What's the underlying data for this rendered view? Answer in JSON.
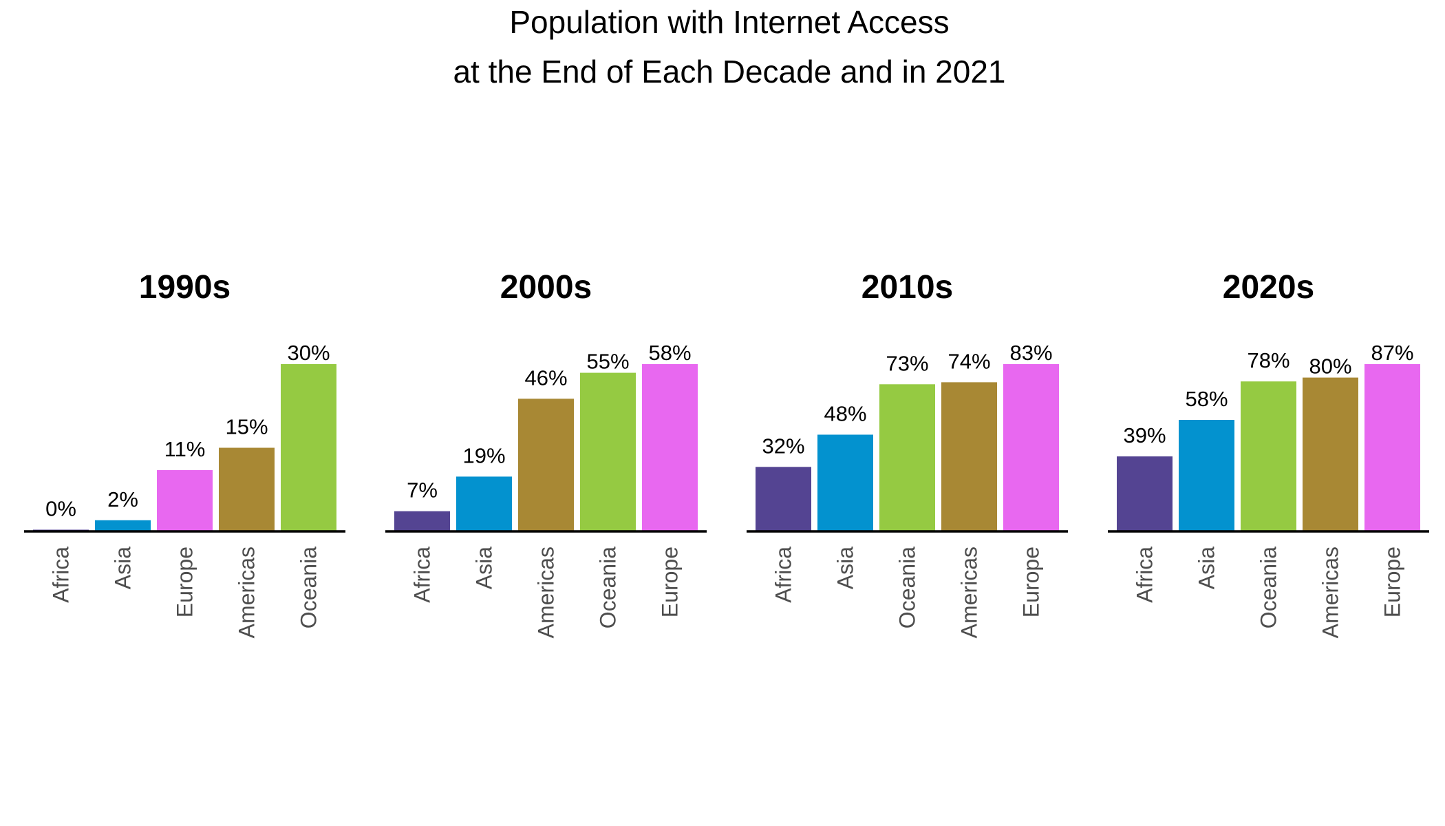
{
  "chart_data": {
    "type": "bar",
    "title_lines": [
      "Population with Internet Access",
      "at the End of Each Decade and in 2021"
    ],
    "value_format": "percent",
    "colors": {
      "Africa": "#544492",
      "Asia": "#0392cf",
      "Europe": "#e868f0",
      "Americas": "#a88834",
      "Oceania": "#95ca42"
    },
    "panels": [
      {
        "title": "1990s",
        "categories": [
          "Africa",
          "Asia",
          "Europe",
          "Americas",
          "Oceania"
        ],
        "values": [
          0,
          2,
          11,
          15,
          30
        ],
        "ylim": [
          0,
          30
        ]
      },
      {
        "title": "2000s",
        "categories": [
          "Africa",
          "Asia",
          "Americas",
          "Oceania",
          "Europe"
        ],
        "values": [
          7,
          19,
          46,
          55,
          58
        ],
        "ylim": [
          0,
          58
        ]
      },
      {
        "title": "2010s",
        "categories": [
          "Africa",
          "Asia",
          "Oceania",
          "Americas",
          "Europe"
        ],
        "values": [
          32,
          48,
          73,
          74,
          83
        ],
        "ylim": [
          0,
          83
        ]
      },
      {
        "title": "2020s",
        "categories": [
          "Africa",
          "Asia",
          "Oceania",
          "Americas",
          "Europe"
        ],
        "values": [
          39,
          58,
          78,
          80,
          87
        ],
        "ylim": [
          0,
          87
        ]
      }
    ]
  }
}
